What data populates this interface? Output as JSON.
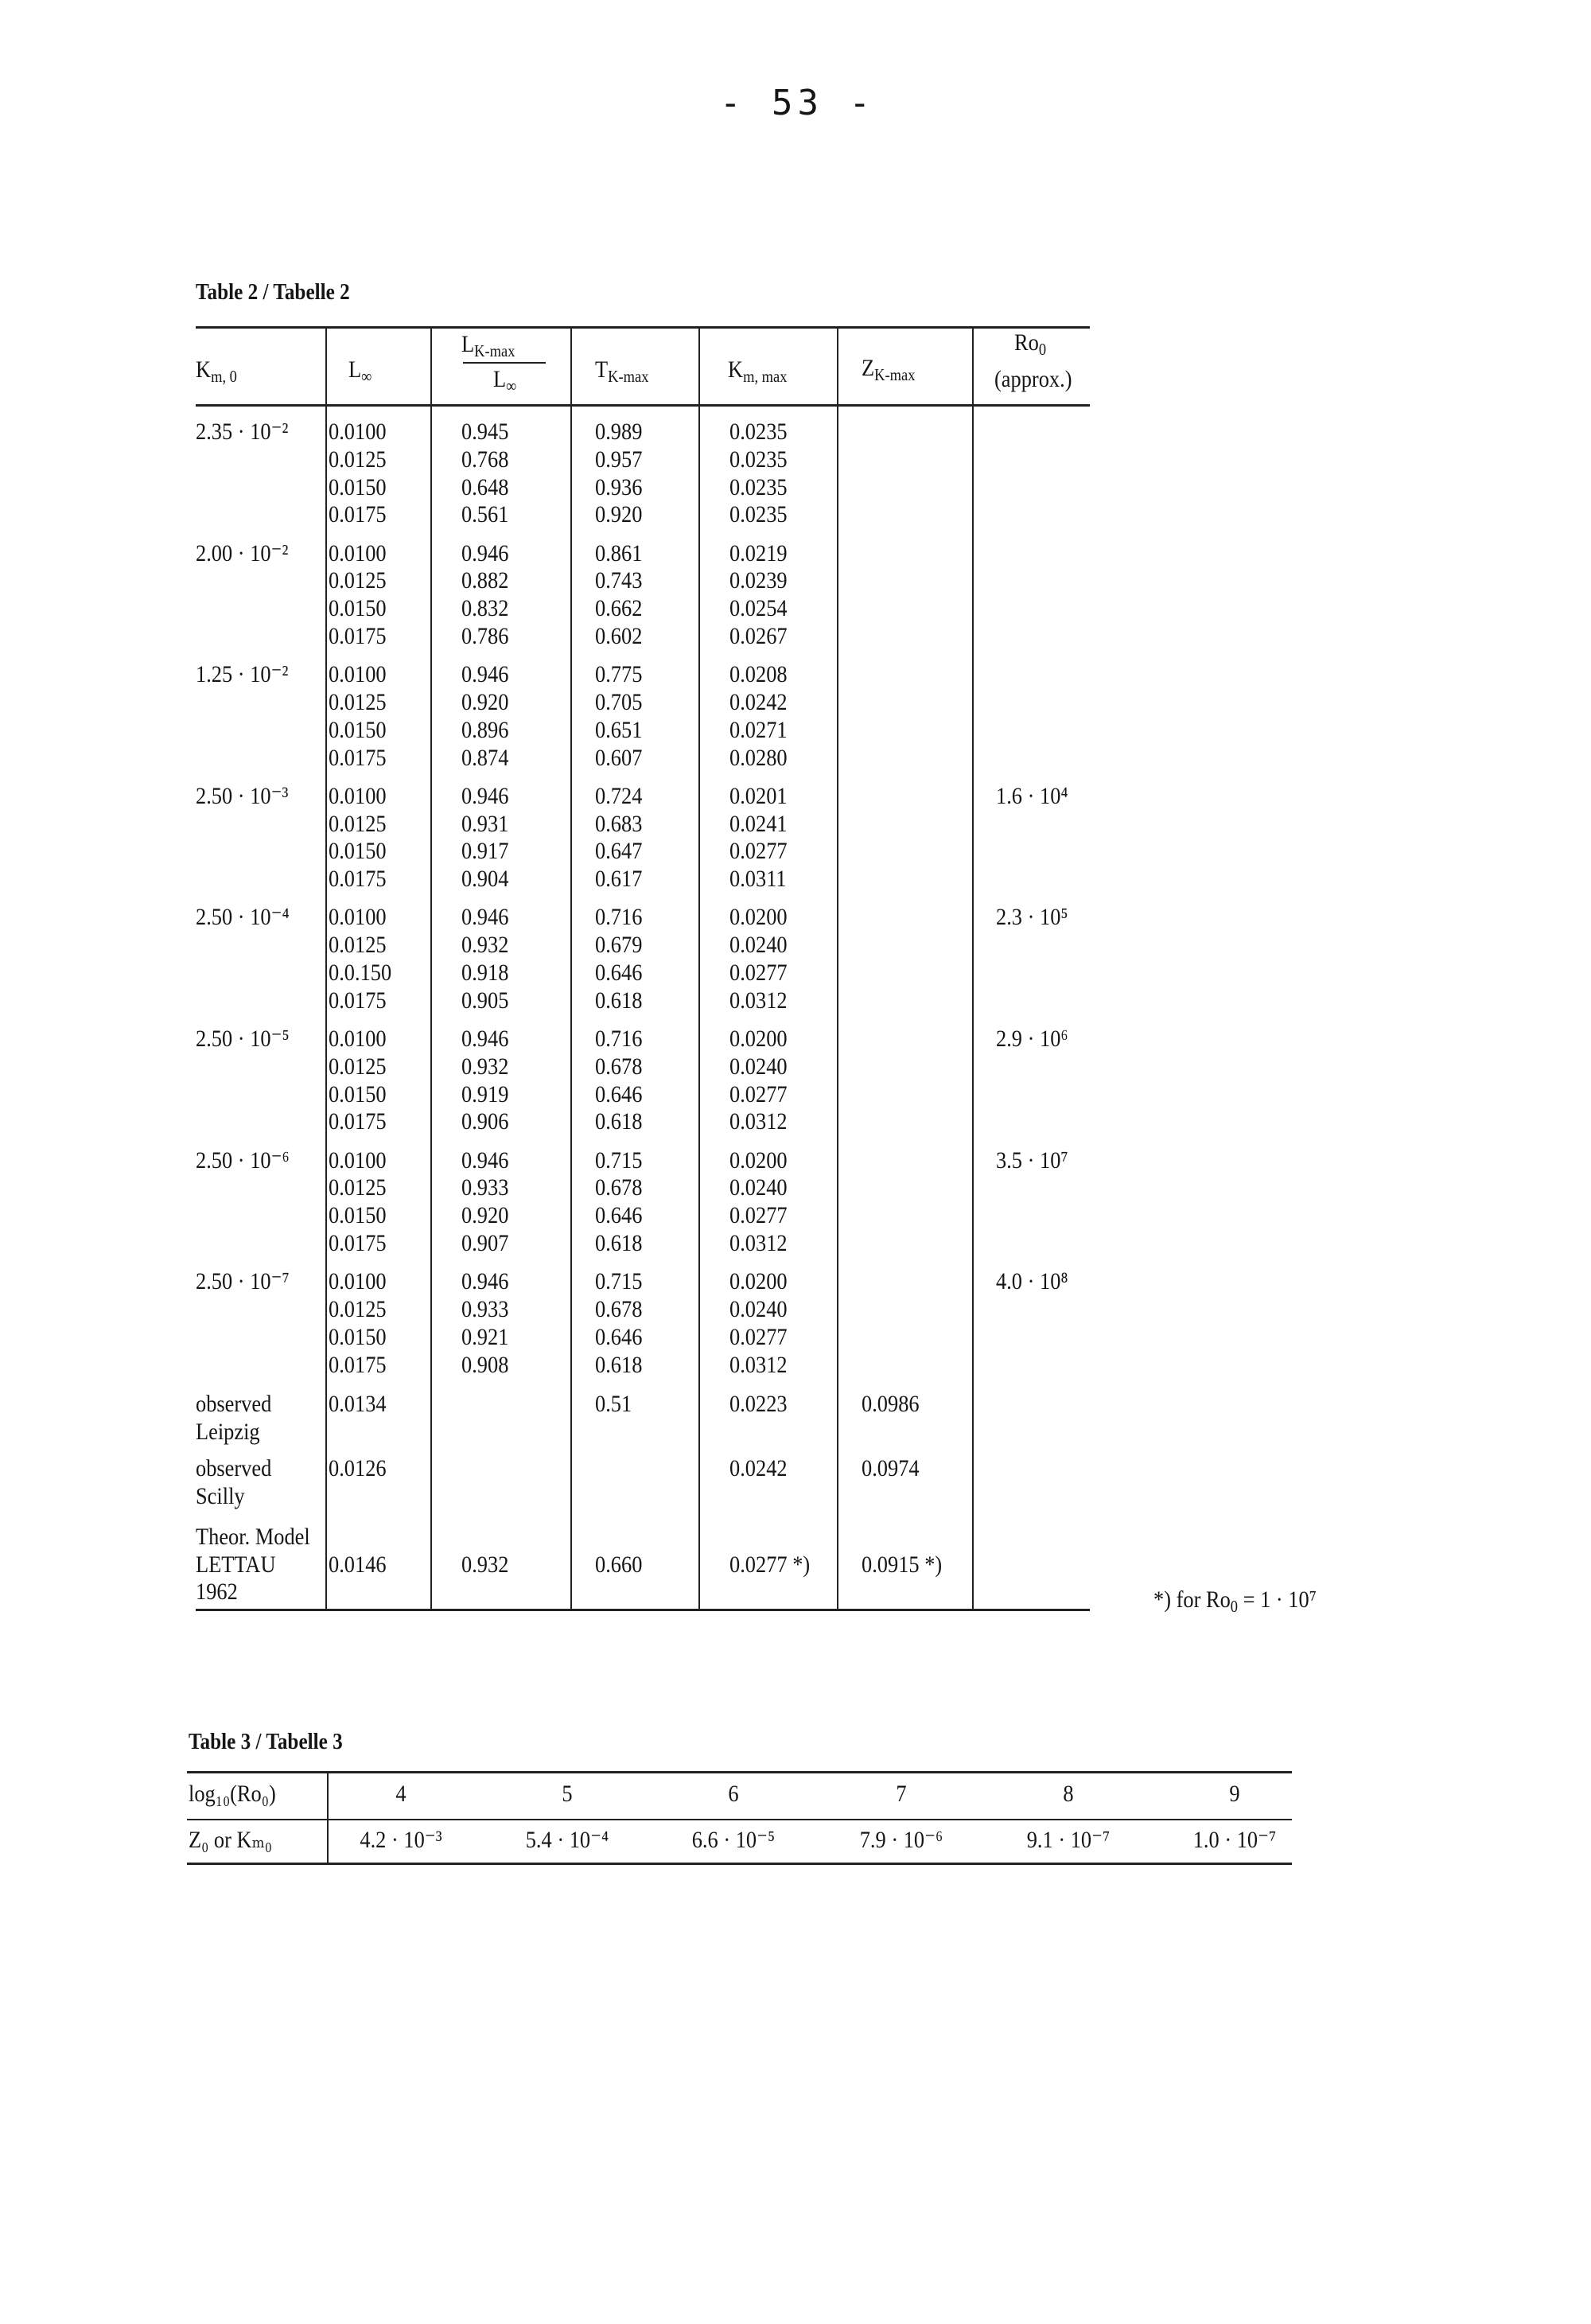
{
  "page_number": "- 53 -",
  "table2": {
    "caption": "Table 2 / Tabelle 2",
    "headers": {
      "km0": {
        "main": "K",
        "sub": "m, 0"
      },
      "linf": {
        "main": "L",
        "sub": "∞"
      },
      "ratio_num": {
        "main": "L",
        "sub": "K-max"
      },
      "ratio_den": {
        "main": "L",
        "sub": "∞"
      },
      "tkmax": {
        "main": "T",
        "sub": "K-max"
      },
      "kmmax": {
        "main": "K",
        "sub": "m, max"
      },
      "zkmax": {
        "main": "Z",
        "sub": "K-max"
      },
      "ro0": {
        "main": "Ro",
        "sub": "0"
      },
      "ro0_note": "(approx.)"
    },
    "groups": [
      {
        "km0": "2.35 · 10⁻²",
        "ro0": "",
        "rows": [
          [
            "0.0100",
            "0.945",
            "0.989",
            "0.0235"
          ],
          [
            "0.0125",
            "0.768",
            "0.957",
            "0.0235"
          ],
          [
            "0.0150",
            "0.648",
            "0.936",
            "0.0235"
          ],
          [
            "0.0175",
            "0.561",
            "0.920",
            "0.0235"
          ]
        ]
      },
      {
        "km0": "2.00 · 10⁻²",
        "ro0": "",
        "rows": [
          [
            "0.0100",
            "0.946",
            "0.861",
            "0.0219"
          ],
          [
            "0.0125",
            "0.882",
            "0.743",
            "0.0239"
          ],
          [
            "0.0150",
            "0.832",
            "0.662",
            "0.0254"
          ],
          [
            "0.0175",
            "0.786",
            "0.602",
            "0.0267"
          ]
        ]
      },
      {
        "km0": "1.25 · 10⁻²",
        "ro0": "",
        "rows": [
          [
            "0.0100",
            "0.946",
            "0.775",
            "0.0208"
          ],
          [
            "0.0125",
            "0.920",
            "0.705",
            "0.0242"
          ],
          [
            "0.0150",
            "0.896",
            "0.651",
            "0.0271"
          ],
          [
            "0.0175",
            "0.874",
            "0.607",
            "0.0280"
          ]
        ]
      },
      {
        "km0": "2.50 · 10⁻³",
        "ro0": "1.6 · 10⁴",
        "rows": [
          [
            "0.0100",
            "0.946",
            "0.724",
            "0.0201"
          ],
          [
            "0.0125",
            "0.931",
            "0.683",
            "0.0241"
          ],
          [
            "0.0150",
            "0.917",
            "0.647",
            "0.0277"
          ],
          [
            "0.0175",
            "0.904",
            "0.617",
            "0.0311"
          ]
        ]
      },
      {
        "km0": "2.50 · 10⁻⁴",
        "ro0": "2.3 · 10⁵",
        "rows": [
          [
            "0.0100",
            "0.946",
            "0.716",
            "0.0200"
          ],
          [
            "0.0125",
            "0.932",
            "0.679",
            "0.0240"
          ],
          [
            "0.0.150",
            "0.918",
            "0.646",
            "0.0277"
          ],
          [
            "0.0175",
            "0.905",
            "0.618",
            "0.0312"
          ]
        ]
      },
      {
        "km0": "2.50 · 10⁻⁵",
        "ro0": "2.9 · 10⁶",
        "rows": [
          [
            "0.0100",
            "0.946",
            "0.716",
            "0.0200"
          ],
          [
            "0.0125",
            "0.932",
            "0.678",
            "0.0240"
          ],
          [
            "0.0150",
            "0.919",
            "0.646",
            "0.0277"
          ],
          [
            "0.0175",
            "0.906",
            "0.618",
            "0.0312"
          ]
        ]
      },
      {
        "km0": "2.50 · 10⁻⁶",
        "ro0": "3.5 · 10⁷",
        "rows": [
          [
            "0.0100",
            "0.946",
            "0.715",
            "0.0200"
          ],
          [
            "0.0125",
            "0.933",
            "0.678",
            "0.0240"
          ],
          [
            "0.0150",
            "0.920",
            "0.646",
            "0.0277"
          ],
          [
            "0.0175",
            "0.907",
            "0.618",
            "0.0312"
          ]
        ]
      },
      {
        "km0": "2.50 · 10⁻⁷",
        "ro0": "4.0 · 10⁸",
        "rows": [
          [
            "0.0100",
            "0.946",
            "0.715",
            "0.0200"
          ],
          [
            "0.0125",
            "0.933",
            "0.678",
            "0.0240"
          ],
          [
            "0.0150",
            "0.921",
            "0.646",
            "0.0277"
          ],
          [
            "0.0175",
            "0.908",
            "0.618",
            "0.0312"
          ]
        ]
      }
    ],
    "special_rows": [
      {
        "label": [
          "observed",
          "Leipzig"
        ],
        "value_line": 0,
        "values": [
          "0.0134",
          "",
          "0.51",
          "0.0223",
          "0.0986"
        ]
      },
      {
        "label": [
          "observed",
          "Scilly"
        ],
        "value_line": 0,
        "values": [
          "0.0126",
          "",
          "",
          "0.0242",
          "0.0974"
        ]
      },
      {
        "label": [
          "Theor. Model",
          "LETTAU",
          "1962"
        ],
        "value_line": 1,
        "values": [
          "0.0146",
          "0.932",
          "0.660",
          "0.0277 *)",
          "0.0915 *)"
        ]
      }
    ],
    "footnote": {
      "text": "*) for Ro",
      "sub": "0",
      "rest": " = 1 · 10⁷"
    }
  },
  "table3": {
    "caption": "Table 3 / Tabelle 3",
    "row1_label": "log₁₀(Ro₀)",
    "row2_label": "Z₀ or Kₘ₀",
    "log_values": [
      "4",
      "5",
      "6",
      "7",
      "8",
      "9"
    ],
    "z_values": [
      "4.2 · 10⁻³",
      "5.4 · 10⁻⁴",
      "6.6 · 10⁻⁵",
      "7.9 · 10⁻⁶",
      "9.1 · 10⁻⁷",
      "1.0 · 10⁻⁷"
    ]
  }
}
